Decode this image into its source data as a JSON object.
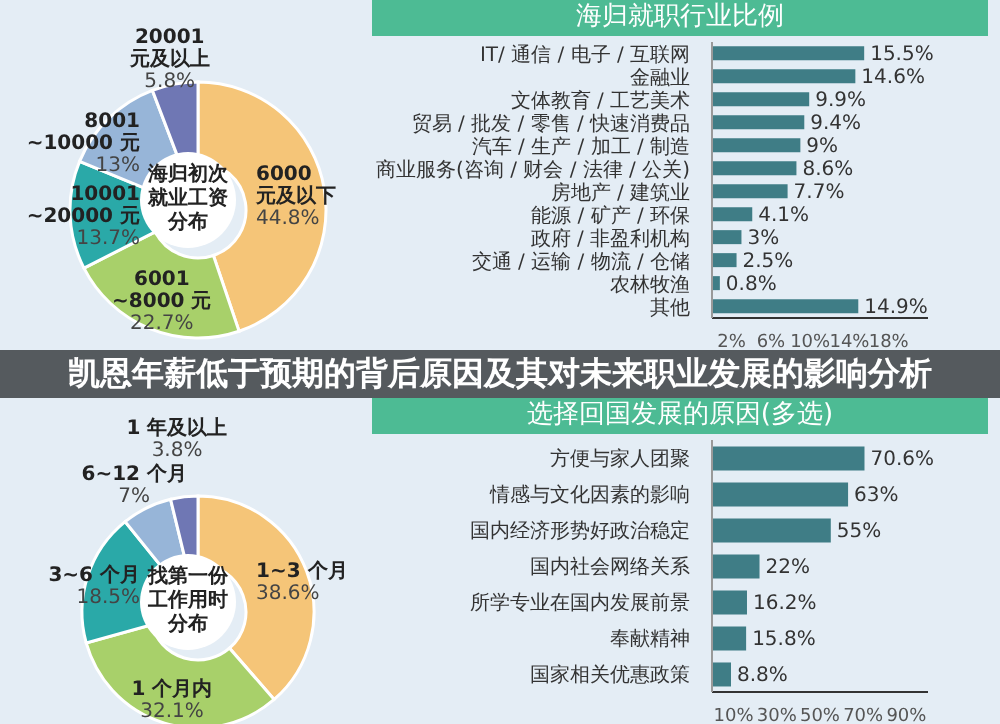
{
  "chart_data": [
    {
      "type": "donut",
      "title": "海归初次就业工资分布",
      "categories": [
        "6000 元及以下",
        "6001~8000 元",
        "10001~20000 元",
        "8001~10000 元",
        "20001 元及以上"
      ],
      "values": [
        44.8,
        22.7,
        13.7,
        13,
        5.8
      ],
      "value_labels": [
        "44.8%",
        "22.7%",
        "13.7%",
        "13%",
        "5.8%"
      ],
      "colors": [
        "#f5c578",
        "#a8d06a",
        "#2aa9a8",
        "#97b5d8",
        "#6f77b4"
      ]
    },
    {
      "type": "bar",
      "orientation": "horizontal",
      "title": "海归就职行业比例",
      "categories": [
        "IT/ 通信 / 电子 / 互联网",
        "金融业",
        "文体教育 / 工艺美术",
        "贸易 / 批发 / 零售 / 快速消费品",
        "汽车 / 生产 / 加工 / 制造",
        "商业服务(咨询 / 财会 / 法律 / 公关)",
        "房地产 / 建筑业",
        "能源 / 矿产 / 环保",
        "政府 / 非盈利机构",
        "交通 / 运输 / 物流 / 仓储",
        "农林牧渔",
        "其他"
      ],
      "values": [
        15.5,
        14.6,
        9.9,
        9.4,
        9,
        8.6,
        7.7,
        4.1,
        3,
        2.5,
        0.8,
        14.9
      ],
      "value_labels": [
        "15.5%",
        "14.6%",
        "9.9%",
        "9.4%",
        "9%",
        "8.6%",
        "7.7%",
        "4.1%",
        "3%",
        "2.5%",
        "0.8%",
        "14.9%"
      ],
      "color": "#3f7d86",
      "xlim": [
        0,
        22
      ],
      "xticks": [
        {
          "value": 2,
          "label": "2%"
        },
        {
          "value": 6,
          "label": "6%"
        },
        {
          "value": 10,
          "label": "10%"
        },
        {
          "value": 14,
          "label": "14%"
        },
        {
          "value": 18,
          "label": "18%"
        }
      ]
    },
    {
      "type": "other",
      "title": "凯恩年薪低于预期的背后原因及其对未来职业发展的影响分析"
    },
    {
      "type": "donut",
      "title": "找第一份工作用时分布",
      "categories": [
        "1~3 个月",
        "1 个月内",
        "3~6 个月",
        "6~12 个月",
        "1 年及以上"
      ],
      "values": [
        38.6,
        32.1,
        18.5,
        7,
        3.8
      ],
      "value_labels": [
        "38.6%",
        "32.1%",
        "18.5%",
        "7%",
        "3.8%"
      ],
      "colors": [
        "#f5c578",
        "#a8d06a",
        "#2aa9a8",
        "#97b5d8",
        "#6f77b4"
      ]
    },
    {
      "type": "bar",
      "orientation": "horizontal",
      "title": "选择回国发展的原因(多选)",
      "categories": [
        "方便与家人团聚",
        "情感与文化因素的影响",
        "国内经济形势好政治稳定",
        "国内社会网络关系",
        "所学专业在国内发展前景",
        "奉献精神",
        "国家相关优惠政策"
      ],
      "values": [
        70.6,
        63,
        55,
        22,
        16.2,
        15.8,
        8.8
      ],
      "value_labels": [
        "70.6%",
        "63%",
        "55%",
        "22%",
        "16.2%",
        "15.8%",
        "8.8%"
      ],
      "color": "#3f7d86",
      "xlim": [
        0,
        100
      ],
      "xticks": [
        {
          "value": 10,
          "label": "10%"
        },
        {
          "value": 30,
          "label": "30%"
        },
        {
          "value": 50,
          "label": "50%"
        },
        {
          "value": 70,
          "label": "70%"
        },
        {
          "value": 90,
          "label": "90%"
        }
      ]
    }
  ]
}
